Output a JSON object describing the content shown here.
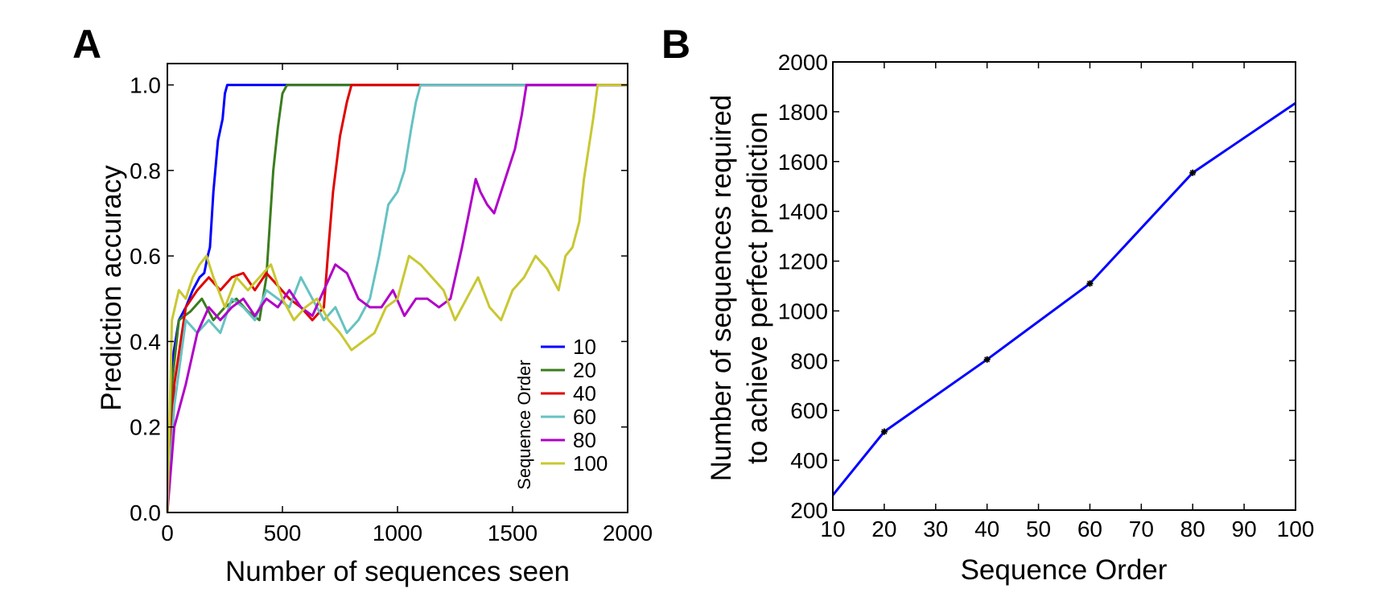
{
  "panels": [
    {
      "label": "A"
    },
    {
      "label": "B"
    }
  ],
  "chart_data": [
    {
      "type": "line",
      "panel": "A",
      "title": "",
      "xlabel": "Number of sequences seen",
      "ylabel": "Prediction accuracy",
      "xlim": [
        0,
        2000
      ],
      "ylim": [
        0,
        1.05
      ],
      "xticks": [
        0,
        500,
        1000,
        1500,
        2000
      ],
      "yticks": [
        0.0,
        0.2,
        0.4,
        0.6,
        0.8,
        1.0
      ],
      "ytick_labels": [
        "0.0",
        "0.2",
        "0.4",
        "0.6",
        "0.8",
        "1.0"
      ],
      "grid": false,
      "legend": {
        "title": "Sequence Order",
        "placement": "bottom-right"
      },
      "series": [
        {
          "name": "10",
          "color": "#0000ff",
          "x": [
            0,
            20,
            50,
            80,
            110,
            140,
            160,
            175,
            185,
            200,
            220,
            240,
            250,
            260,
            2000
          ],
          "y": [
            0.0,
            0.35,
            0.45,
            0.48,
            0.52,
            0.55,
            0.56,
            0.6,
            0.62,
            0.75,
            0.87,
            0.92,
            0.98,
            1.0,
            1.0
          ]
        },
        {
          "name": "20",
          "color": "#3a7d1e",
          "x": [
            0,
            20,
            50,
            100,
            150,
            200,
            250,
            300,
            350,
            400,
            430,
            460,
            480,
            500,
            520,
            2000
          ],
          "y": [
            0.0,
            0.3,
            0.45,
            0.47,
            0.5,
            0.45,
            0.48,
            0.5,
            0.47,
            0.45,
            0.55,
            0.8,
            0.9,
            0.98,
            1.0,
            1.0
          ]
        },
        {
          "name": "40",
          "color": "#e00000",
          "x": [
            0,
            30,
            80,
            130,
            180,
            230,
            280,
            330,
            380,
            430,
            480,
            530,
            580,
            630,
            680,
            700,
            720,
            750,
            780,
            800,
            2000
          ],
          "y": [
            0.0,
            0.3,
            0.48,
            0.52,
            0.55,
            0.52,
            0.55,
            0.56,
            0.52,
            0.56,
            0.53,
            0.5,
            0.48,
            0.45,
            0.48,
            0.62,
            0.75,
            0.88,
            0.96,
            1.0,
            1.0
          ]
        },
        {
          "name": "60",
          "color": "#66c2c2",
          "x": [
            0,
            30,
            80,
            130,
            180,
            230,
            280,
            330,
            380,
            430,
            480,
            530,
            580,
            630,
            680,
            730,
            780,
            830,
            880,
            920,
            960,
            1000,
            1030,
            1060,
            1080,
            1100,
            2000
          ],
          "y": [
            0.0,
            0.25,
            0.45,
            0.42,
            0.45,
            0.42,
            0.5,
            0.48,
            0.45,
            0.52,
            0.5,
            0.48,
            0.55,
            0.5,
            0.45,
            0.48,
            0.42,
            0.45,
            0.5,
            0.6,
            0.72,
            0.75,
            0.8,
            0.9,
            0.96,
            1.0,
            1.0
          ]
        },
        {
          "name": "80",
          "color": "#b000c8",
          "x": [
            0,
            30,
            80,
            130,
            180,
            230,
            280,
            330,
            380,
            430,
            480,
            530,
            580,
            630,
            680,
            730,
            780,
            830,
            880,
            930,
            980,
            1030,
            1080,
            1130,
            1180,
            1230,
            1280,
            1310,
            1340,
            1360,
            1390,
            1420,
            1450,
            1480,
            1510,
            1540,
            1560,
            2000
          ],
          "y": [
            0.0,
            0.2,
            0.3,
            0.42,
            0.48,
            0.45,
            0.48,
            0.5,
            0.46,
            0.5,
            0.48,
            0.52,
            0.48,
            0.46,
            0.52,
            0.58,
            0.56,
            0.5,
            0.48,
            0.48,
            0.52,
            0.46,
            0.5,
            0.5,
            0.48,
            0.5,
            0.62,
            0.7,
            0.78,
            0.75,
            0.72,
            0.7,
            0.75,
            0.8,
            0.85,
            0.93,
            1.0,
            1.0
          ]
        },
        {
          "name": "100",
          "color": "#c8c832",
          "x": [
            0,
            20,
            50,
            80,
            110,
            140,
            170,
            200,
            250,
            300,
            350,
            400,
            450,
            500,
            550,
            600,
            650,
            700,
            750,
            800,
            850,
            900,
            950,
            1000,
            1050,
            1100,
            1150,
            1200,
            1250,
            1300,
            1350,
            1400,
            1450,
            1500,
            1550,
            1600,
            1650,
            1700,
            1730,
            1760,
            1790,
            1810,
            1830,
            1850,
            1870,
            2000
          ],
          "y": [
            0.0,
            0.45,
            0.52,
            0.5,
            0.55,
            0.58,
            0.6,
            0.55,
            0.48,
            0.55,
            0.52,
            0.55,
            0.58,
            0.5,
            0.45,
            0.48,
            0.5,
            0.45,
            0.42,
            0.38,
            0.4,
            0.42,
            0.48,
            0.5,
            0.6,
            0.58,
            0.55,
            0.52,
            0.45,
            0.5,
            0.55,
            0.48,
            0.45,
            0.52,
            0.55,
            0.6,
            0.57,
            0.52,
            0.6,
            0.62,
            0.68,
            0.78,
            0.85,
            0.92,
            1.0,
            1.0
          ]
        }
      ]
    },
    {
      "type": "line",
      "panel": "B",
      "title": "",
      "xlabel": "Sequence Order",
      "ylabel": "Number of sequences required\nto achieve perfect prediction",
      "ylabel_lines": [
        "Number of sequences required",
        "to achieve perfect prediction"
      ],
      "xlim": [
        10,
        100
      ],
      "ylim": [
        200,
        2000
      ],
      "xticks": [
        10,
        20,
        30,
        40,
        50,
        60,
        70,
        80,
        90,
        100
      ],
      "yticks": [
        200,
        400,
        600,
        800,
        1000,
        1200,
        1400,
        1600,
        1800,
        2000
      ],
      "grid": false,
      "series": [
        {
          "color": "#0000ff",
          "marker": "star",
          "marker_color": "#000000",
          "x": [
            10,
            20,
            40,
            60,
            80,
            100
          ],
          "y": [
            260,
            515,
            805,
            1110,
            1555,
            1835
          ],
          "marked_x": [
            20,
            40,
            60,
            80
          ]
        }
      ]
    }
  ]
}
